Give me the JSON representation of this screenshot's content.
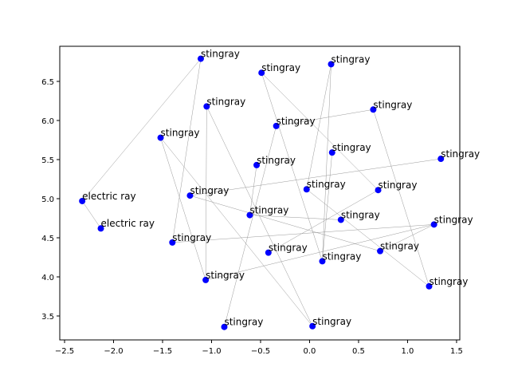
{
  "chart_data": {
    "type": "scatter",
    "color": "#0000ff",
    "labels": [
      "stingray",
      "stingray",
      "stingray",
      "stingray",
      "stingray",
      "stingray",
      "stingray",
      "stingray",
      "stingray",
      "stingray",
      "electric ray",
      "stingray",
      "stingray",
      "stingray",
      "electric ray",
      "stingray",
      "stingray",
      "stingray",
      "stingray",
      "stingray",
      "stingray",
      "stingray",
      "stingray",
      "stingray",
      "stingray",
      "stingray"
    ],
    "x": [
      -1.11,
      -0.49,
      0.22,
      -1.05,
      0.65,
      -0.34,
      -1.52,
      0.23,
      1.34,
      -0.54,
      -2.32,
      -0.03,
      0.7,
      -1.22,
      -2.13,
      -0.61,
      0.32,
      1.27,
      -1.4,
      0.72,
      -0.42,
      0.13,
      1.22,
      -1.06,
      -0.87,
      0.03
    ],
    "y": [
      6.79,
      6.61,
      6.72,
      6.18,
      6.14,
      5.93,
      5.78,
      5.59,
      5.51,
      5.43,
      4.97,
      5.12,
      5.11,
      5.04,
      4.62,
      4.79,
      4.73,
      4.67,
      4.44,
      4.33,
      4.31,
      4.2,
      3.88,
      3.96,
      3.36,
      3.37
    ],
    "edges": [
      [
        0,
        10
      ],
      [
        0,
        18
      ],
      [
        10,
        14
      ],
      [
        1,
        12
      ],
      [
        1,
        21
      ],
      [
        2,
        11
      ],
      [
        2,
        21
      ],
      [
        3,
        23
      ],
      [
        3,
        25
      ],
      [
        4,
        22
      ],
      [
        5,
        4
      ],
      [
        5,
        24
      ],
      [
        6,
        25
      ],
      [
        7,
        21
      ],
      [
        8,
        13
      ],
      [
        9,
        15
      ],
      [
        12,
        20
      ],
      [
        13,
        19
      ],
      [
        15,
        16
      ],
      [
        17,
        18
      ],
      [
        17,
        19
      ],
      [
        17,
        23
      ],
      [
        11,
        22
      ],
      [
        6,
        23
      ]
    ],
    "xlim": [
      -2.549,
      1.533
    ],
    "ylim": [
      3.194,
      6.949
    ],
    "xticks": [
      {
        "value": -2.5,
        "label": "−2.5"
      },
      {
        "value": -2.0,
        "label": "−2.0"
      },
      {
        "value": -1.5,
        "label": "−1.5"
      },
      {
        "value": -1.0,
        "label": "−1.0"
      },
      {
        "value": -0.5,
        "label": "−0.5"
      },
      {
        "value": 0,
        "label": "0.0"
      },
      0.5,
      {
        "value": 1,
        "label": "1.0"
      },
      1.5
    ],
    "yticks": [
      3.5,
      {
        "value": 4,
        "label": "4.0"
      },
      4.5,
      {
        "value": 5,
        "label": "5.0"
      },
      5.5,
      {
        "value": 6,
        "label": "6.0"
      },
      6.5
    ]
  }
}
